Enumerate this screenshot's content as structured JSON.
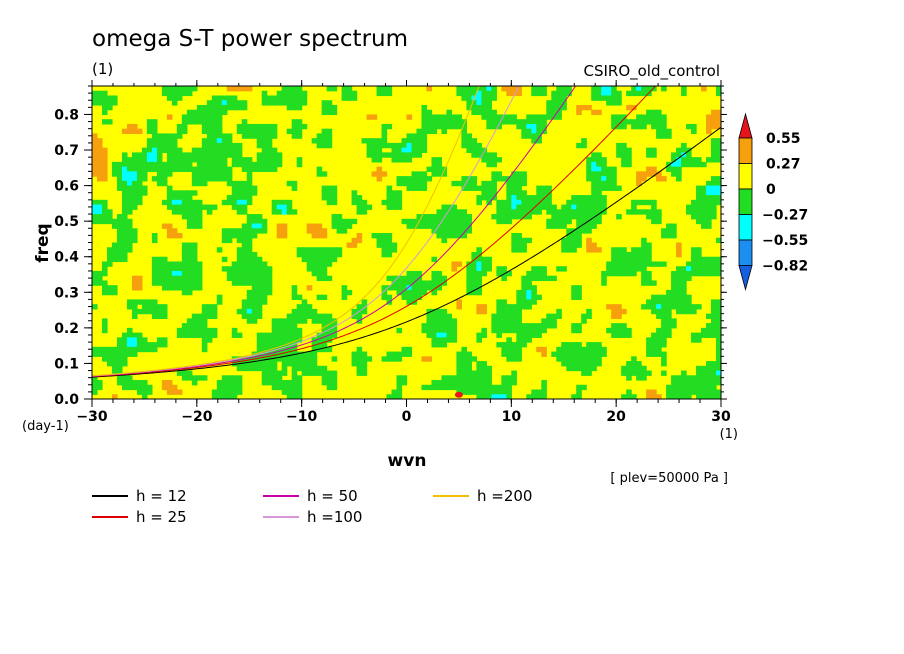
{
  "chart_data": {
    "type": "heatmap",
    "title": "omega S-T power spectrum",
    "subtitle": "(1)",
    "dataset": "CSIRO_old_control",
    "xlabel": "wvn",
    "ylabel": "freq",
    "x_unit": "(1)",
    "y_unit": "(day-1)",
    "note": "[ plev=50000 Pa ]",
    "xlim": [
      -30,
      30
    ],
    "ylim": [
      0,
      0.88
    ],
    "x_ticks": [
      -30,
      -20,
      -10,
      0,
      10,
      20,
      30
    ],
    "y_ticks": [
      0.0,
      0.1,
      0.2,
      0.3,
      0.4,
      0.5,
      0.6,
      0.7,
      0.8
    ],
    "colorbar": {
      "levels": [
        "0.55",
        "0.27",
        "0",
        "-0.27",
        "-0.55",
        "-0.82"
      ],
      "colors": [
        "#e8141c",
        "#f5a00c",
        "#ffff00",
        "#22dd22",
        "#00ffff",
        "#1b8ff0",
        "#1560e0"
      ]
    },
    "field_composition": {
      "yellow": 0.62,
      "green": 0.35,
      "orange": 0.02,
      "cyan": 0.01
    },
    "series": [
      {
        "name": "h = 12",
        "color": "#000000",
        "h": 12
      },
      {
        "name": "h = 25",
        "color": "#dd0000",
        "h": 25
      },
      {
        "name": "h = 50",
        "color": "#cc00aa",
        "h": 50
      },
      {
        "name": "h =100",
        "color": "#d898d8",
        "h": 100
      },
      {
        "name": "h =200",
        "color": "#f0c000",
        "h": 200
      }
    ]
  }
}
